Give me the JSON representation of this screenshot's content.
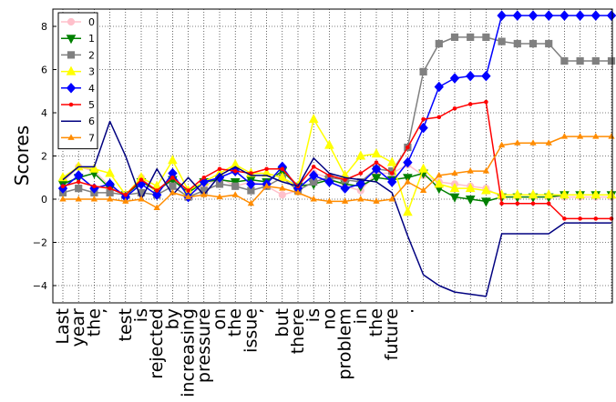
{
  "chart_data": {
    "type": "line",
    "title": "",
    "xlabel": "",
    "ylabel": "Scores",
    "ylim": [
      -4.8,
      8.8
    ],
    "yticks": [
      -4,
      -2,
      0,
      2,
      4,
      6,
      8
    ],
    "grid": true,
    "legend_position": "top-left",
    "categories": [
      "Last",
      "year",
      "the",
      "’",
      "test",
      "is",
      "rejected",
      "by",
      "increasing",
      "pressure",
      "on",
      "the",
      "issue",
      "’",
      "but",
      "there",
      "is",
      "no",
      "problem",
      "in",
      "the",
      "future",
      "."
    ],
    "x": [
      0,
      1,
      2,
      3,
      4,
      5,
      6,
      7,
      8,
      9,
      10,
      11,
      12,
      13,
      14,
      15,
      16,
      17,
      18,
      19,
      20,
      21,
      22,
      23,
      24,
      25,
      26,
      27,
      28,
      29,
      30,
      31,
      32,
      33,
      34,
      35
    ],
    "series": [
      {
        "name": "0",
        "color": "#ffc0cb",
        "marker": "circle",
        "values": [
          0.8,
          1.5,
          1.3,
          0.6,
          0.2,
          1.0,
          0.3,
          1.0,
          0.2,
          0.6,
          1.0,
          0.6,
          0.8,
          0.6,
          0.2,
          0.4,
          1.2,
          1.0,
          0.6,
          0.4,
          1.2,
          1.2,
          1.6,
          1.1,
          0.8,
          0.7,
          0.6,
          0.5,
          0.1,
          0.1,
          0.1,
          0.1,
          0.1,
          0.1,
          0.1,
          0.1
        ]
      },
      {
        "name": "1",
        "color": "#008000",
        "marker": "triangle-down",
        "values": [
          0.7,
          1.0,
          1.2,
          0.5,
          0.2,
          0.8,
          0.4,
          0.9,
          0.3,
          0.8,
          0.9,
          0.8,
          0.9,
          0.8,
          1.3,
          0.6,
          0.7,
          0.9,
          0.7,
          0.6,
          1.0,
          0.9,
          1.0,
          1.2,
          0.5,
          0.1,
          0.0,
          -0.1,
          0.1,
          0.1,
          0.1,
          0.1,
          0.2,
          0.2,
          0.2,
          0.2
        ]
      },
      {
        "name": "2",
        "color": "#808080",
        "marker": "square",
        "values": [
          0.3,
          0.5,
          0.3,
          0.3,
          0.2,
          0.3,
          0.2,
          0.6,
          0.1,
          0.4,
          0.7,
          0.6,
          0.4,
          0.6,
          1.0,
          0.4,
          0.8,
          1.0,
          0.9,
          0.8,
          1.4,
          1.3,
          2.4,
          5.9,
          7.2,
          7.5,
          7.5,
          7.5,
          7.3,
          7.2,
          7.2,
          7.2,
          6.4,
          6.4,
          6.4,
          6.4
        ]
      },
      {
        "name": "3",
        "color": "#ffff00",
        "marker": "triangle-up",
        "values": [
          1.0,
          1.5,
          1.4,
          1.2,
          0.2,
          1.0,
          0.6,
          1.8,
          0.4,
          0.8,
          1.2,
          1.6,
          1.2,
          1.2,
          1.0,
          0.6,
          3.7,
          2.5,
          1.1,
          2.0,
          2.1,
          1.7,
          -0.6,
          1.4,
          0.7,
          0.5,
          0.5,
          0.4,
          0.2,
          0.2,
          0.2,
          0.2,
          0.2,
          0.2,
          0.2,
          0.2
        ]
      },
      {
        "name": "4",
        "color": "#0000ff",
        "marker": "diamond",
        "values": [
          0.5,
          1.1,
          0.5,
          0.7,
          0.1,
          0.7,
          0.2,
          1.2,
          0.1,
          0.8,
          1.0,
          1.3,
          0.7,
          0.7,
          1.5,
          0.5,
          1.1,
          0.8,
          0.5,
          0.7,
          1.4,
          0.8,
          1.7,
          3.3,
          5.2,
          5.6,
          5.7,
          5.7,
          8.5,
          8.5,
          8.5,
          8.5,
          8.5,
          8.5,
          8.5,
          8.5
        ]
      },
      {
        "name": "5",
        "color": "#ff0000",
        "marker": "point",
        "values": [
          0.6,
          0.8,
          0.6,
          0.5,
          0.2,
          0.9,
          0.4,
          1.0,
          0.4,
          1.0,
          1.4,
          1.3,
          1.2,
          1.4,
          1.4,
          0.6,
          1.5,
          1.1,
          0.9,
          1.2,
          1.7,
          1.2,
          2.4,
          3.7,
          3.8,
          4.2,
          4.4,
          4.5,
          -0.2,
          -0.2,
          -0.2,
          -0.2,
          -0.9,
          -0.9,
          -0.9,
          -0.9
        ]
      },
      {
        "name": "6",
        "color": "#000080",
        "marker": "none",
        "values": [
          0.9,
          1.5,
          1.5,
          3.6,
          2.0,
          0.0,
          1.4,
          0.2,
          1.0,
          0.2,
          1.1,
          1.5,
          1.1,
          1.1,
          0.8,
          0.6,
          1.9,
          1.2,
          1.0,
          0.9,
          0.8,
          0.3,
          -1.7,
          -3.5,
          -4.0,
          -4.3,
          -4.4,
          -4.5,
          -1.6,
          -1.6,
          -1.6,
          -1.6,
          -1.1,
          -1.1,
          -1.1,
          -1.1
        ]
      },
      {
        "name": "7",
        "color": "#ff8c00",
        "marker": "triangle-small",
        "values": [
          0.0,
          0.0,
          0.0,
          0.0,
          -0.1,
          0.0,
          -0.4,
          0.3,
          0.1,
          0.2,
          0.1,
          0.2,
          -0.2,
          0.6,
          0.5,
          0.3,
          0.0,
          -0.1,
          -0.1,
          0.0,
          -0.1,
          0.0,
          0.8,
          0.4,
          1.1,
          1.2,
          1.3,
          1.3,
          2.5,
          2.6,
          2.6,
          2.6,
          2.9,
          2.9,
          2.9,
          2.9
        ]
      }
    ]
  }
}
